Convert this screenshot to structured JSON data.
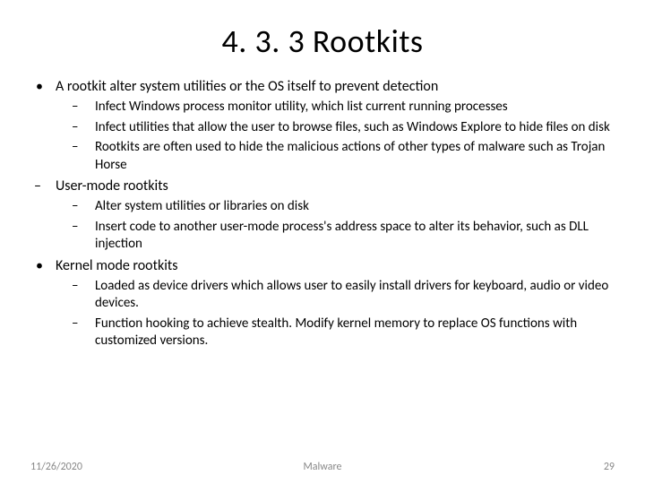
{
  "title": "4. 3. 3 Rootkits",
  "sections": [
    {
      "bullet": "dot",
      "text": "A rootkit alter system utilities or the OS itself to prevent detection",
      "sub": [
        "Infect Windows process monitor utility, which list current running processes",
        "Infect utilities that allow the user to browse files, such as Windows Explore to hide files on disk",
        "Rootkits are often used to hide the malicious actions of other types of malware such as Trojan Horse"
      ]
    },
    {
      "bullet": "dash",
      "text": "User-mode rootkits",
      "sub": [
        "Alter system utilities or libraries on disk",
        "Insert code to another user-mode process's address space to alter its behavior, such as DLL injection"
      ]
    },
    {
      "bullet": "dot",
      "text": "Kernel mode rootkits",
      "sub": [
        "Loaded as device drivers which allows user to easily install drivers for keyboard, audio or video devices.",
        "Function hooking to achieve stealth. Modify kernel memory to replace OS functions with customized versions."
      ]
    }
  ],
  "footer": {
    "date": "11/26/2020",
    "center": "Malware",
    "page": "29"
  },
  "colors": {
    "background": "#ffffff",
    "text": "#000000",
    "footer": "#888888"
  },
  "typography": {
    "title_fontsize": 36,
    "body_fontsize": 16,
    "sub_fontsize": 15,
    "footer_fontsize": 12,
    "font_family": "Calibri"
  }
}
